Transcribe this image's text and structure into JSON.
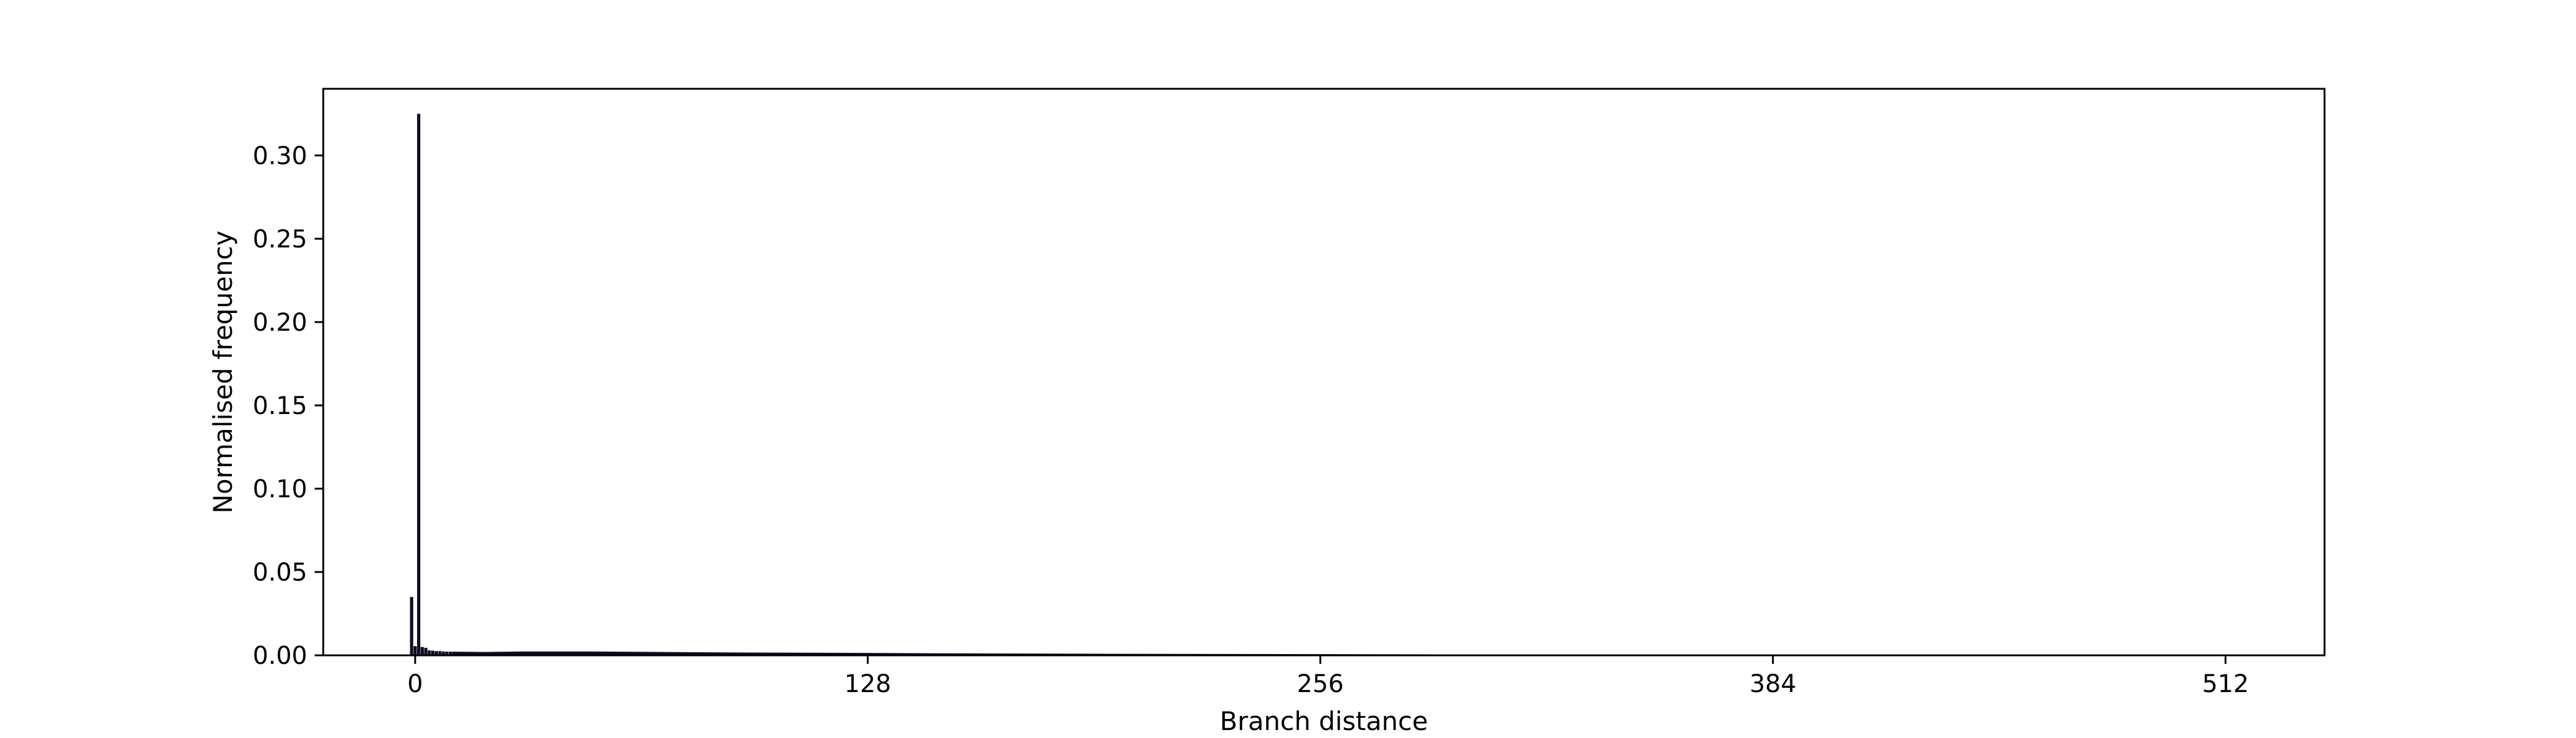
{
  "chart_data": {
    "type": "bar",
    "title": "",
    "xlabel": "Branch distance",
    "ylabel": "Normalised frequency",
    "xlim": [
      -26,
      540
    ],
    "ylim": [
      0,
      0.34
    ],
    "xticks": [
      0,
      128,
      256,
      384,
      512
    ],
    "xtick_labels": [
      "0",
      "128",
      "256",
      "384",
      "512"
    ],
    "yticks": [
      0.0,
      0.05,
      0.1,
      0.15,
      0.2,
      0.25,
      0.3
    ],
    "ytick_labels": [
      "0.00",
      "0.05",
      "0.10",
      "0.15",
      "0.20",
      "0.25",
      "0.30"
    ],
    "grid": false,
    "colors": {
      "bar": "#0d0d22",
      "axis": "#000000"
    },
    "bar_width": 0.9,
    "bars": [
      {
        "x": -1,
        "value": 0.035
      },
      {
        "x": 0,
        "value": 0.0055
      },
      {
        "x": 1,
        "value": 0.325
      },
      {
        "x": 2,
        "value": 0.005
      },
      {
        "x": 3,
        "value": 0.0045
      },
      {
        "x": 4,
        "value": 0.003
      },
      {
        "x": 5,
        "value": 0.0028
      },
      {
        "x": 6,
        "value": 0.0025
      },
      {
        "x": 7,
        "value": 0.0025
      },
      {
        "x": 8,
        "value": 0.0023
      },
      {
        "x": 9,
        "value": 0.0022
      },
      {
        "x": 10,
        "value": 0.0022
      }
    ],
    "tail": [
      {
        "x": 10,
        "value": 0.0022
      },
      {
        "x": 20,
        "value": 0.002
      },
      {
        "x": 30,
        "value": 0.0023
      },
      {
        "x": 50,
        "value": 0.0023
      },
      {
        "x": 70,
        "value": 0.002
      },
      {
        "x": 90,
        "value": 0.0017
      },
      {
        "x": 120,
        "value": 0.0015
      },
      {
        "x": 150,
        "value": 0.0012
      },
      {
        "x": 200,
        "value": 0.0009
      },
      {
        "x": 256,
        "value": 0.0007
      },
      {
        "x": 300,
        "value": 0.0005
      },
      {
        "x": 384,
        "value": 0.0003
      },
      {
        "x": 450,
        "value": 0.0002
      },
      {
        "x": 520,
        "value": 0.0001
      }
    ]
  }
}
